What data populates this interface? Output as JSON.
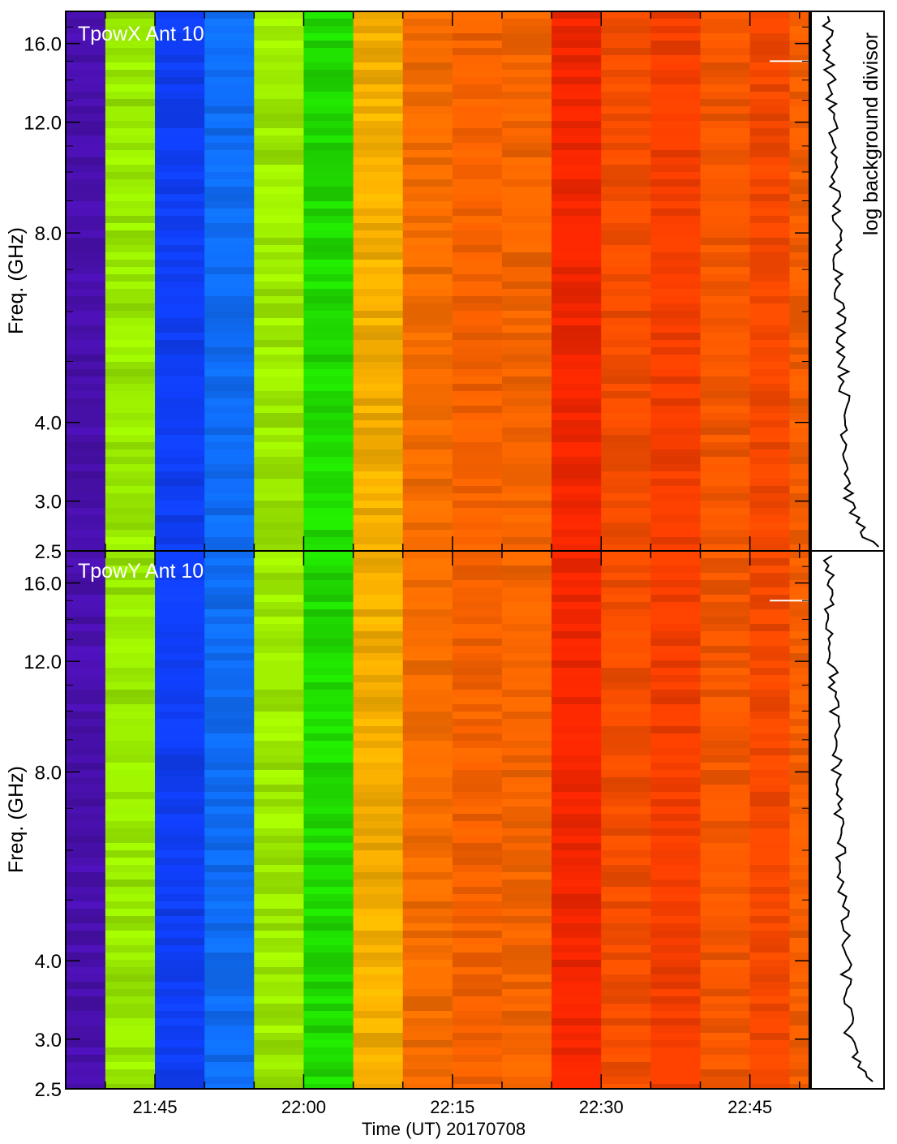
{
  "chart_data": {
    "type": "heatmap",
    "xlabel": "Time (UT) 20170708",
    "x_major_ticks": [
      "21:45",
      "22:00",
      "22:15",
      "22:30",
      "22:45"
    ],
    "x_range_minutes_utc": [
      "21:36",
      "22:51"
    ],
    "side_panel_label": "log background divisor",
    "panels": [
      {
        "title": "TpowX Ant 10",
        "ylabel": "Freq. (GHz)",
        "y_ticks": [
          "2.5",
          "3.0",
          "4.0",
          "8.0",
          "12.0",
          "16.0"
        ],
        "y_scale": "log",
        "ylim": [
          2.5,
          18.0
        ],
        "time_bins_utc": [
          "21:36",
          "21:40",
          "21:45",
          "21:50",
          "21:55",
          "22:00",
          "22:05",
          "22:10",
          "22:15",
          "22:20",
          "22:25",
          "22:30",
          "22:35",
          "22:40",
          "22:45",
          "22:49"
        ],
        "column_colors": [
          "#4a10b0",
          "#9cf000",
          "#1040ff",
          "#1070ff",
          "#a0f000",
          "#20e000",
          "#ffb400",
          "#ff7000",
          "#ff6400",
          "#ff6800",
          "#ff2800",
          "#ff5000",
          "#ff4000",
          "#ff5a00",
          "#ff4a00",
          "#ff6000"
        ],
        "markers": [
          {
            "time_utc": "22:47",
            "freq_ghz": 15.0,
            "color": "#ffffff"
          }
        ]
      },
      {
        "title": "TpowY Ant 10",
        "ylabel": "Freq. (GHz)",
        "y_ticks": [
          "2.5",
          "3.0",
          "4.0",
          "8.0",
          "12.0",
          "16.0"
        ],
        "y_scale": "log",
        "ylim": [
          2.5,
          18.0
        ],
        "time_bins_utc": [
          "21:36",
          "21:40",
          "21:45",
          "21:50",
          "21:55",
          "22:00",
          "22:05",
          "22:10",
          "22:15",
          "22:20",
          "22:25",
          "22:30",
          "22:35",
          "22:40",
          "22:45",
          "22:49"
        ],
        "column_colors": [
          "#4a10b0",
          "#9cf000",
          "#1040ff",
          "#1070ff",
          "#a0f000",
          "#20e000",
          "#ffb400",
          "#ff7000",
          "#ff6400",
          "#ff6800",
          "#ff2800",
          "#ff5000",
          "#ff4000",
          "#ff5a00",
          "#ff4a00",
          "#ff6000"
        ],
        "markers": [
          {
            "time_utc": "22:47",
            "freq_ghz": 15.0,
            "color": "#ffffff"
          }
        ]
      }
    ]
  }
}
